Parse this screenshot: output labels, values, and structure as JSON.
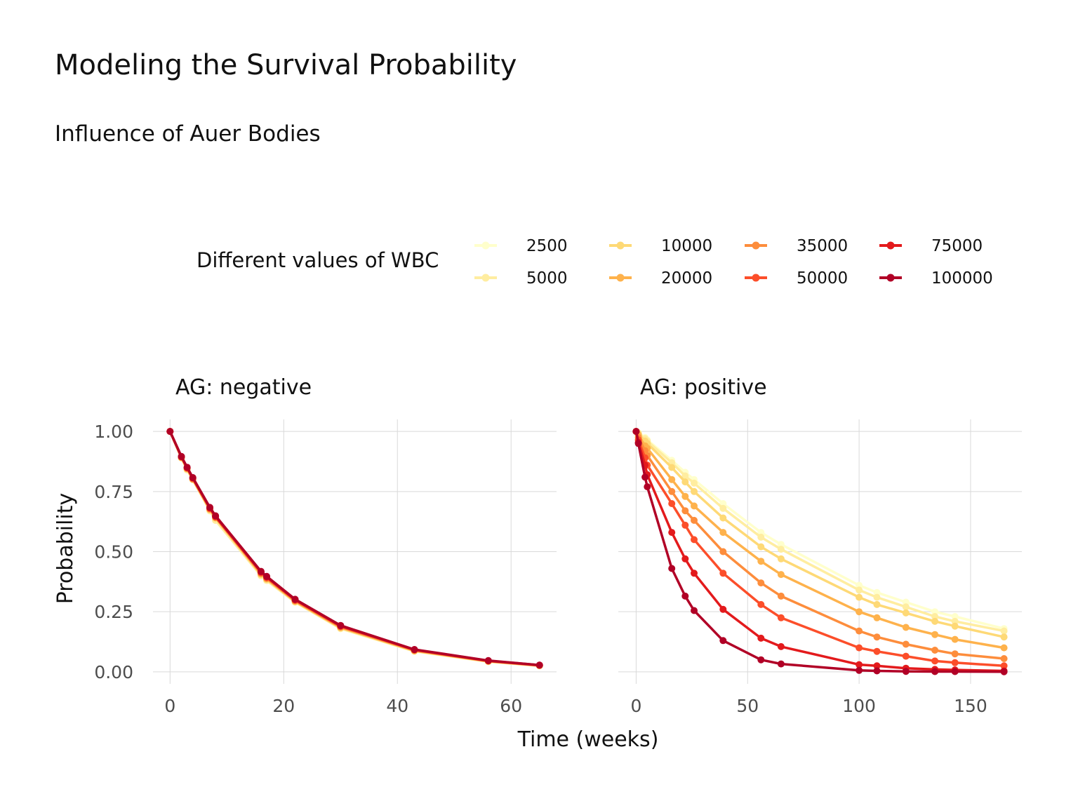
{
  "chart_data": {
    "type": "line",
    "title": "Modeling the Survival Probability",
    "subtitle": "Influence of Auer Bodies",
    "xlabel": "Time (weeks)",
    "ylabel": "Probability",
    "legend": {
      "title": "Different values of WBC",
      "placement": "top"
    },
    "grid": true,
    "series_names": [
      "2500",
      "5000",
      "10000",
      "20000",
      "35000",
      "50000",
      "75000",
      "100000"
    ],
    "colors": [
      "#FFFFCC",
      "#FFEDA0",
      "#FED976",
      "#FEB24C",
      "#FD8D3C",
      "#FC4E2A",
      "#E31A1C",
      "#B10026"
    ],
    "panels": [
      {
        "label": "AG: negative",
        "xlim": [
          -3,
          68
        ],
        "xticks": [
          "0",
          "20",
          "40",
          "60"
        ],
        "ylim": [
          -0.05,
          1.05
        ],
        "yticks": [
          "0.00",
          "0.25",
          "0.50",
          "0.75",
          "1.00"
        ],
        "x": [
          0,
          2,
          3,
          4,
          7,
          8,
          16,
          17,
          22,
          30,
          43,
          56,
          65
        ],
        "series": [
          {
            "name": "2500",
            "values": [
              1.0,
              0.89,
              0.84,
              0.8,
              0.67,
              0.63,
              0.4,
              0.38,
              0.29,
              0.18,
              0.085,
              0.042,
              0.025
            ]
          },
          {
            "name": "5000",
            "values": [
              1.0,
              0.89,
              0.84,
              0.8,
              0.67,
              0.63,
              0.4,
              0.38,
              0.29,
              0.18,
              0.086,
              0.043,
              0.025
            ]
          },
          {
            "name": "10000",
            "values": [
              1.0,
              0.89,
              0.845,
              0.8,
              0.675,
              0.64,
              0.405,
              0.385,
              0.292,
              0.183,
              0.087,
              0.043,
              0.026
            ]
          },
          {
            "name": "20000",
            "values": [
              1.0,
              0.892,
              0.845,
              0.802,
              0.676,
              0.641,
              0.408,
              0.387,
              0.294,
              0.185,
              0.088,
              0.044,
              0.026
            ]
          },
          {
            "name": "35000",
            "values": [
              1.0,
              0.893,
              0.847,
              0.803,
              0.678,
              0.643,
              0.41,
              0.39,
              0.296,
              0.187,
              0.09,
              0.045,
              0.027
            ]
          },
          {
            "name": "50000",
            "values": [
              1.0,
              0.894,
              0.848,
              0.805,
              0.68,
              0.645,
              0.413,
              0.392,
              0.298,
              0.189,
              0.091,
              0.045,
              0.027
            ]
          },
          {
            "name": "75000",
            "values": [
              1.0,
              0.895,
              0.85,
              0.807,
              0.682,
              0.647,
              0.416,
              0.395,
              0.3,
              0.191,
              0.092,
              0.046,
              0.028
            ]
          },
          {
            "name": "100000",
            "values": [
              1.0,
              0.896,
              0.851,
              0.808,
              0.684,
              0.649,
              0.418,
              0.397,
              0.302,
              0.193,
              0.093,
              0.047,
              0.028
            ]
          }
        ]
      },
      {
        "label": "AG: positive",
        "xlim": [
          -8,
          173
        ],
        "xticks": [
          "0",
          "50",
          "100",
          "150"
        ],
        "ylim": [
          -0.05,
          1.05
        ],
        "yticks": [
          "0.00",
          "0.25",
          "0.50",
          "0.75",
          "1.00"
        ],
        "x": [
          0,
          1,
          4,
          5,
          16,
          22,
          26,
          39,
          56,
          65,
          100,
          108,
          121,
          134,
          143,
          165
        ],
        "series": [
          {
            "name": "2500",
            "values": [
              1.0,
              0.995,
              0.975,
              0.965,
              0.88,
              0.83,
              0.8,
              0.7,
              0.58,
              0.53,
              0.36,
              0.33,
              0.29,
              0.25,
              0.23,
              0.18
            ]
          },
          {
            "name": "5000",
            "values": [
              1.0,
              0.993,
              0.97,
              0.96,
              0.87,
              0.815,
              0.785,
              0.68,
              0.56,
              0.51,
              0.34,
              0.31,
              0.27,
              0.23,
              0.21,
              0.17
            ]
          },
          {
            "name": "10000",
            "values": [
              1.0,
              0.99,
              0.96,
              0.95,
              0.85,
              0.79,
              0.75,
              0.64,
              0.52,
              0.47,
              0.31,
              0.28,
              0.245,
              0.21,
              0.19,
              0.145
            ]
          },
          {
            "name": "20000",
            "values": [
              1.0,
              0.985,
              0.94,
              0.93,
              0.8,
              0.73,
              0.69,
              0.58,
              0.46,
              0.405,
              0.25,
              0.225,
              0.185,
              0.155,
              0.135,
              0.1
            ]
          },
          {
            "name": "35000",
            "values": [
              1.0,
              0.975,
              0.92,
              0.9,
              0.75,
              0.67,
              0.63,
              0.5,
              0.37,
              0.315,
              0.17,
              0.145,
              0.115,
              0.09,
              0.075,
              0.055
            ]
          },
          {
            "name": "50000",
            "values": [
              1.0,
              0.965,
              0.89,
              0.86,
              0.7,
              0.61,
              0.55,
              0.41,
              0.28,
              0.225,
              0.1,
              0.085,
              0.065,
              0.045,
              0.038,
              0.025
            ]
          },
          {
            "name": "75000",
            "values": [
              1.0,
              0.955,
              0.86,
              0.82,
              0.58,
              0.47,
              0.41,
              0.26,
              0.14,
              0.105,
              0.03,
              0.025,
              0.015,
              0.01,
              0.008,
              0.004
            ]
          },
          {
            "name": "100000",
            "values": [
              1.0,
              0.95,
              0.81,
              0.77,
              0.43,
              0.315,
              0.255,
              0.13,
              0.05,
              0.033,
              0.006,
              0.004,
              0.002,
              0.001,
              0.001,
              0.0005
            ]
          }
        ]
      }
    ]
  }
}
